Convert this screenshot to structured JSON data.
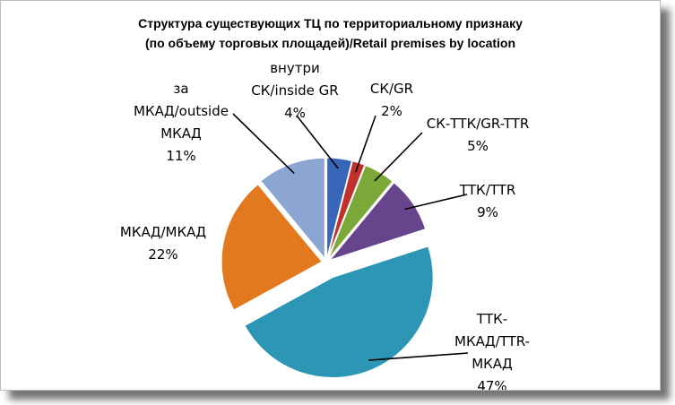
{
  "chart_data": {
    "type": "pie",
    "exploded": true,
    "title_lines": [
      "Структура существующих ТЦ по территориальному признаку",
      "(по объему торговых площадей)/Retail premises by location"
    ],
    "slices": [
      {
        "label_lines": [
          "внутри",
          "СК/inside GR"
        ],
        "value": 4,
        "value_text": "4%",
        "color": "#3766b8"
      },
      {
        "label_lines": [
          "СК/GR"
        ],
        "value": 2,
        "value_text": "2%",
        "color": "#c0312c"
      },
      {
        "label_lines": [
          "СК-ТТК/GR-TTR"
        ],
        "value": 5,
        "value_text": "5%",
        "color": "#7ba838"
      },
      {
        "label_lines": [
          "ТТК/TTR"
        ],
        "value": 9,
        "value_text": "9%",
        "color": "#66458c"
      },
      {
        "label_lines": [
          "ТТК-",
          "МКАД/TTR-",
          "МКАД"
        ],
        "value": 47,
        "value_text": "47%",
        "color": "#2c96b4"
      },
      {
        "label_lines": [
          "МКАД/МКАД"
        ],
        "value": 22,
        "value_text": "22%",
        "color": "#e2791f"
      },
      {
        "label_lines": [
          "за",
          "МКАД/outside",
          "МКАД"
        ],
        "value": 11,
        "value_text": "11%",
        "color": "#8ca6d3"
      }
    ]
  }
}
